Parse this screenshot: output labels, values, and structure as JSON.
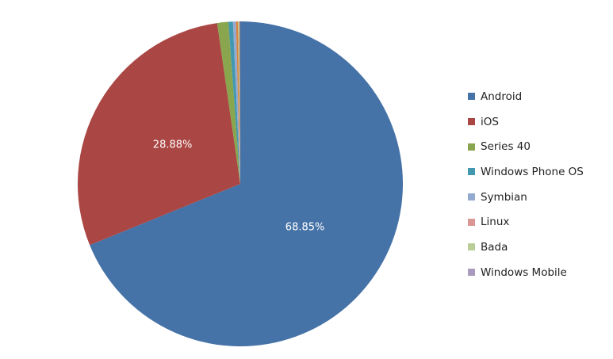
{
  "chart_data": {
    "type": "pie",
    "categories": [
      "Android",
      "iOS",
      "Series 40",
      "Windows Phone OS",
      "Symbian",
      "Linux",
      "Bada",
      "Windows Mobile"
    ],
    "values": [
      68.85,
      28.88,
      1.1,
      0.45,
      0.3,
      0.2,
      0.12,
      0.1
    ],
    "colors": [
      "#4572A7",
      "#AA4643",
      "#89A54E",
      "#4198AF",
      "#93A9CF",
      "#DB843D",
      "#B9CD96",
      "#A47D7C"
    ],
    "legend_colors": [
      "#4572A7",
      "#AA4643",
      "#89A54E",
      "#4198AF",
      "#93A9CF",
      "#D99694",
      "#B9CD96",
      "#A99BBD"
    ],
    "data_labels": [
      "68.85%",
      "28.88%",
      "",
      "",
      "",
      "",
      "",
      ""
    ],
    "legend_position": "right"
  }
}
